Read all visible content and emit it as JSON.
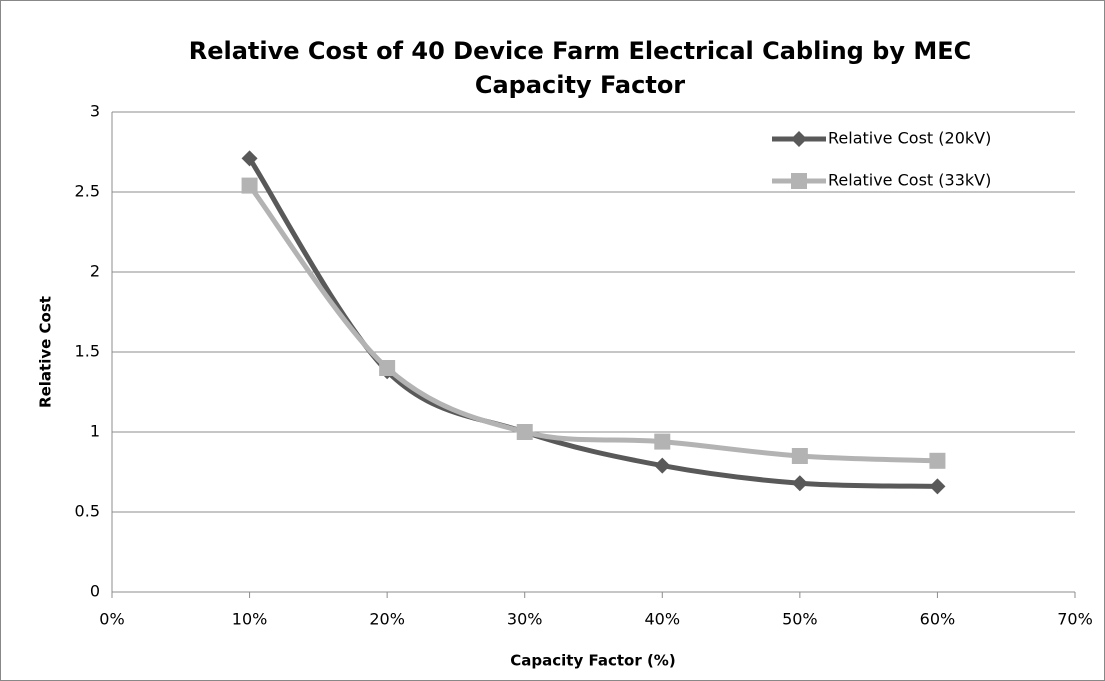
{
  "chart_data": {
    "type": "line",
    "title": "Relative Cost of 40 Device Farm Electrical Cabling by MEC Capacity Factor",
    "x_label": "Capacity Factor (%)",
    "y_label": "Relative Cost",
    "x": [
      10,
      20,
      30,
      40,
      50,
      60
    ],
    "series": [
      {
        "name": "Relative Cost (20kV)",
        "color": "#595959",
        "marker": "diamond",
        "values": [
          2.71,
          1.38,
          1.0,
          0.79,
          0.68,
          0.66
        ]
      },
      {
        "name": "Relative Cost (33kV)",
        "color": "#b3b3b3",
        "marker": "square",
        "values": [
          2.54,
          1.4,
          1.0,
          0.94,
          0.85,
          0.82
        ]
      }
    ],
    "xlim": [
      0,
      70
    ],
    "xticks": [
      {
        "value": 0,
        "label": "0%"
      },
      {
        "value": 10,
        "label": "10%"
      },
      {
        "value": 20,
        "label": "20%"
      },
      {
        "value": 30,
        "label": "30%"
      },
      {
        "value": 40,
        "label": "40%"
      },
      {
        "value": 50,
        "label": "50%"
      },
      {
        "value": 60,
        "label": "60%"
      },
      {
        "value": 70,
        "label": "70%"
      }
    ],
    "ylim": [
      0,
      3
    ],
    "yticks": [
      0,
      0.5,
      1,
      1.5,
      2,
      2.5,
      3
    ],
    "grid": true,
    "smooth": true,
    "legend": "upper right"
  }
}
